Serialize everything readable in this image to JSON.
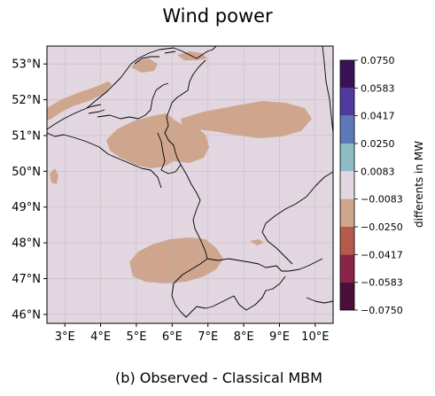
{
  "title": "Wind power",
  "caption": "(b) Observed - Classical MBM",
  "map": {
    "lon_range": [
      2.5,
      10.5
    ],
    "lat_range": [
      45.75,
      53.5
    ],
    "lon_ticks": [
      {
        "value": 3,
        "label": "3°E"
      },
      {
        "value": 4,
        "label": "4°E"
      },
      {
        "value": 5,
        "label": "5°E"
      },
      {
        "value": 6,
        "label": "6°E"
      },
      {
        "value": 7,
        "label": "7°E"
      },
      {
        "value": 8,
        "label": "8°E"
      },
      {
        "value": 9,
        "label": "9°E"
      },
      {
        "value": 10,
        "label": "10°E"
      }
    ],
    "lat_ticks": [
      {
        "value": 53,
        "label": "53°N"
      },
      {
        "value": 52,
        "label": "52°N"
      },
      {
        "value": 51,
        "label": "51°N"
      },
      {
        "value": 50,
        "label": "50°N"
      },
      {
        "value": 49,
        "label": "49°N"
      },
      {
        "value": 48,
        "label": "48°N"
      },
      {
        "value": 47,
        "label": "47°N"
      },
      {
        "value": 46,
        "label": "46°N"
      }
    ],
    "grid": true,
    "background_bin_color": "#e2d6e1",
    "negative_region_color": "#cfa68d",
    "regions": [
      {
        "name": "northwest",
        "bin": "-0.0250 to -0.0083"
      },
      {
        "name": "central-belgium-germany",
        "bin": "-0.0250 to -0.0083"
      },
      {
        "name": "eastern-germany",
        "bin": "-0.0250 to -0.0083"
      },
      {
        "name": "switzerland-france",
        "bin": "-0.0250 to -0.0083"
      },
      {
        "name": "north-sea",
        "bin": "-0.0250 to -0.0083"
      }
    ]
  },
  "colorbar": {
    "label": "differents in MW",
    "tick_labels": [
      "0.0750",
      "0.0583",
      "0.0417",
      "0.0250",
      "0.0083",
      "−0.0083",
      "−0.0250",
      "−0.0417",
      "−0.0583",
      "−0.0750"
    ],
    "bins": [
      {
        "from": 0.0583,
        "to": 0.075,
        "color": "#3a1256"
      },
      {
        "from": 0.0417,
        "to": 0.0583,
        "color": "#503a9d"
      },
      {
        "from": 0.025,
        "to": 0.0417,
        "color": "#5d79b9"
      },
      {
        "from": 0.0083,
        "to": 0.025,
        "color": "#8dbcc4"
      },
      {
        "from": -0.0083,
        "to": 0.0083,
        "color": "#e2d6e1"
      },
      {
        "from": -0.025,
        "to": -0.0083,
        "color": "#cfa68d"
      },
      {
        "from": -0.0417,
        "to": -0.025,
        "color": "#b45b4b"
      },
      {
        "from": -0.0583,
        "to": -0.0417,
        "color": "#8a2448"
      },
      {
        "from": -0.075,
        "to": -0.0583,
        "color": "#4b0f3c"
      }
    ]
  }
}
